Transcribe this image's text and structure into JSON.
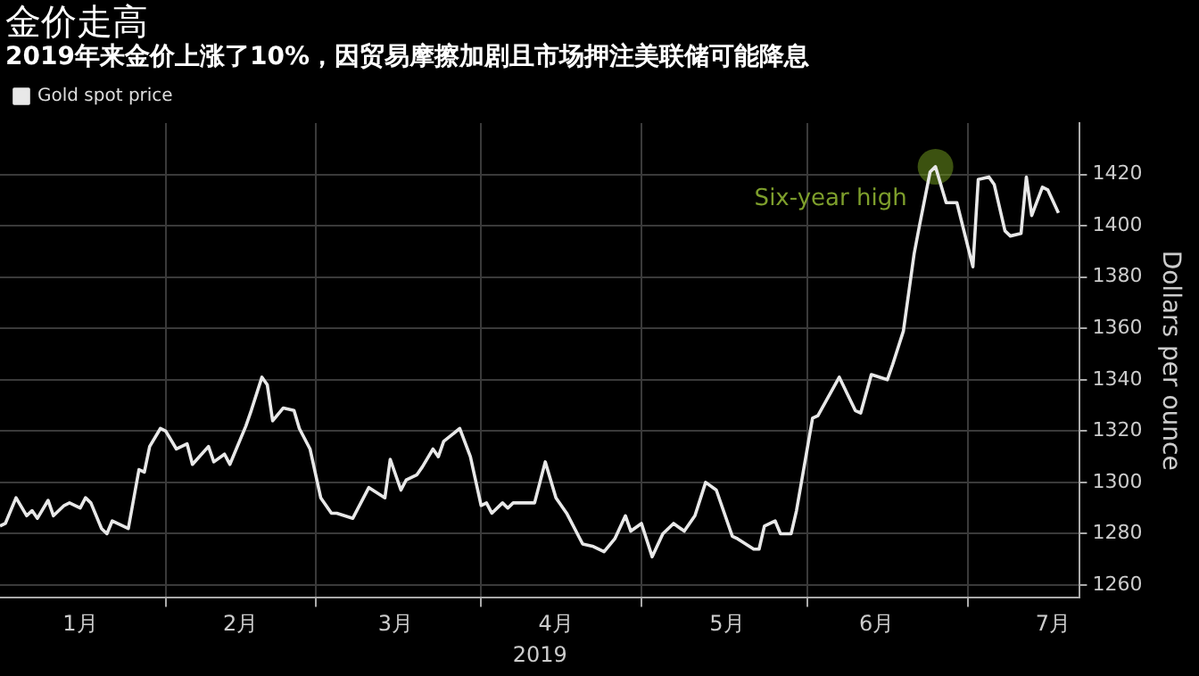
{
  "chart_data": {
    "type": "line",
    "title": "金价走高",
    "subtitle": "2019年来金价上涨了10%，因贸易摩擦加剧且市场押注美联储可能降息",
    "xlabel": "2019",
    "ylabel": "Dollars per ounce",
    "x": [
      "2019-01-01",
      "2019-01-02",
      "2019-01-04",
      "2019-01-06",
      "2019-01-07",
      "2019-01-08",
      "2019-01-10",
      "2019-01-11",
      "2019-01-13",
      "2019-01-14",
      "2019-01-16",
      "2019-01-17",
      "2019-01-18",
      "2019-01-20",
      "2019-01-21",
      "2019-01-22",
      "2019-01-25",
      "2019-01-27",
      "2019-01-28",
      "2019-01-29",
      "2019-01-31",
      "2019-02-01",
      "2019-02-03",
      "2019-02-05",
      "2019-02-06",
      "2019-02-09",
      "2019-02-10",
      "2019-02-12",
      "2019-02-13",
      "2019-02-16",
      "2019-02-17",
      "2019-02-19",
      "2019-02-20",
      "2019-02-21",
      "2019-02-23",
      "2019-02-25",
      "2019-02-26",
      "2019-02-28",
      "2019-03-02",
      "2019-03-04",
      "2019-03-05",
      "2019-03-08",
      "2019-03-11",
      "2019-03-14",
      "2019-03-15",
      "2019-03-17",
      "2019-03-18",
      "2019-03-20",
      "2019-03-21",
      "2019-03-23",
      "2019-03-24",
      "2019-03-25",
      "2019-03-28",
      "2019-03-30",
      "2019-04-01",
      "2019-04-02",
      "2019-04-03",
      "2019-04-05",
      "2019-04-06",
      "2019-04-07",
      "2019-04-11",
      "2019-04-13",
      "2019-04-15",
      "2019-04-17",
      "2019-04-20",
      "2019-04-22",
      "2019-04-24",
      "2019-04-26",
      "2019-04-28",
      "2019-04-29",
      "2019-05-01",
      "2019-05-03",
      "2019-05-05",
      "2019-05-07",
      "2019-05-09",
      "2019-05-11",
      "2019-05-13",
      "2019-05-15",
      "2019-05-18",
      "2019-05-19",
      "2019-05-22",
      "2019-05-23",
      "2019-05-24",
      "2019-05-26",
      "2019-05-27",
      "2019-05-29",
      "2019-05-30",
      "2019-06-02",
      "2019-06-03",
      "2019-06-07",
      "2019-06-10",
      "2019-06-11",
      "2019-06-13",
      "2019-06-16",
      "2019-06-17",
      "2019-06-19",
      "2019-06-21",
      "2019-06-22",
      "2019-06-24",
      "2019-06-25",
      "2019-06-27",
      "2019-06-29",
      "2019-07-02",
      "2019-07-03",
      "2019-07-05",
      "2019-07-06",
      "2019-07-08",
      "2019-07-09",
      "2019-07-11",
      "2019-07-12",
      "2019-07-13",
      "2019-07-15",
      "2019-07-16",
      "2019-07-18"
    ],
    "series": [
      {
        "name": "Gold spot price",
        "color": "#e8e8e8",
        "values": [
          1283,
          1284,
          1294,
          1287,
          1289,
          1286,
          1293,
          1287,
          1291,
          1292,
          1290,
          1294,
          1292,
          1282,
          1280,
          1285,
          1282,
          1305,
          1304,
          1314,
          1321,
          1320,
          1313,
          1315,
          1307,
          1314,
          1308,
          1311,
          1307,
          1322,
          1328,
          1341,
          1338,
          1324,
          1329,
          1328,
          1321,
          1313,
          1294,
          1288,
          1288,
          1286,
          1298,
          1294,
          1309,
          1297,
          1301,
          1303,
          1306,
          1313,
          1310,
          1316,
          1321,
          1310,
          1291,
          1292,
          1288,
          1292,
          1290,
          1292,
          1292,
          1308,
          1294,
          1288,
          1276,
          1275,
          1273,
          1278,
          1287,
          1281,
          1284,
          1271,
          1280,
          1284,
          1281,
          1287,
          1300,
          1297,
          1279,
          1278,
          1274,
          1274,
          1283,
          1285,
          1280,
          1280,
          1289,
          1325,
          1326,
          1341,
          1328,
          1327,
          1342,
          1340,
          1346,
          1359,
          1389,
          1400,
          1421,
          1423,
          1409,
          1409,
          1384,
          1418,
          1419,
          1416,
          1398,
          1396,
          1397,
          1419,
          1404,
          1415,
          1414,
          1405
        ]
      }
    ],
    "xlim": [
      "2019-01-01",
      "2019-07-22"
    ],
    "xticks": [
      {
        "value": "2019-01-16",
        "label": "1月"
      },
      {
        "value": "2019-02-01",
        "label": null
      },
      {
        "value": "2019-02-15",
        "label": "2月"
      },
      {
        "value": "2019-03-01",
        "label": null
      },
      {
        "value": "2019-03-16",
        "label": "3月"
      },
      {
        "value": "2019-04-01",
        "label": null
      },
      {
        "value": "2019-04-15",
        "label": "4月"
      },
      {
        "value": "2019-05-01",
        "label": null
      },
      {
        "value": "2019-05-17",
        "label": "5月"
      },
      {
        "value": "2019-06-01",
        "label": null
      },
      {
        "value": "2019-06-14",
        "label": "6月"
      },
      {
        "value": "2019-07-01",
        "label": null
      },
      {
        "value": "2019-07-17",
        "label": "7月"
      }
    ],
    "ylim": [
      1255,
      1440
    ],
    "yticks": [
      1260,
      1280,
      1300,
      1320,
      1340,
      1360,
      1380,
      1400,
      1420
    ],
    "annotations": [
      {
        "text": "Six-year high",
        "x": "2019-06-25",
        "y": 1423
      }
    ],
    "grid": true,
    "legend": "top left",
    "marker": "none",
    "line_style": "solid"
  }
}
